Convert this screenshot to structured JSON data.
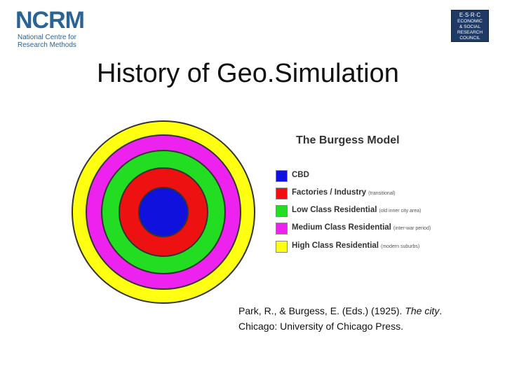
{
  "logos": {
    "ncrm": {
      "word": "NCRM",
      "subtitle_line1": "National Centre for",
      "subtitle_line2": "Research Methods"
    },
    "esrc": {
      "lines": [
        "E·S·R·C",
        "ECONOMIC",
        "& SOCIAL",
        "RESEARCH",
        "COUNCIL"
      ]
    }
  },
  "slide": {
    "title": "History of Geo.Simulation"
  },
  "model": {
    "title": "The Burgess Model",
    "zones": [
      {
        "label": "CBD",
        "note": "",
        "color": "#1111dd"
      },
      {
        "label": "Factories / Industry",
        "note": "(transitional)",
        "color": "#ee1111"
      },
      {
        "label": "Low Class Residential",
        "note": "(old inner city area)",
        "color": "#22dd22"
      },
      {
        "label": "Medium Class Residential",
        "note": "(inter-war period)",
        "color": "#ee22ee"
      },
      {
        "label": "High Class Residential",
        "note": "(modern suburbs)",
        "color": "#ffff11"
      }
    ]
  },
  "citation": {
    "authors": "Park, R., & Burgess, E. (Eds.) (1925). ",
    "title": "The city",
    "end": ".",
    "line2": "Chicago: University of Chicago Press."
  }
}
